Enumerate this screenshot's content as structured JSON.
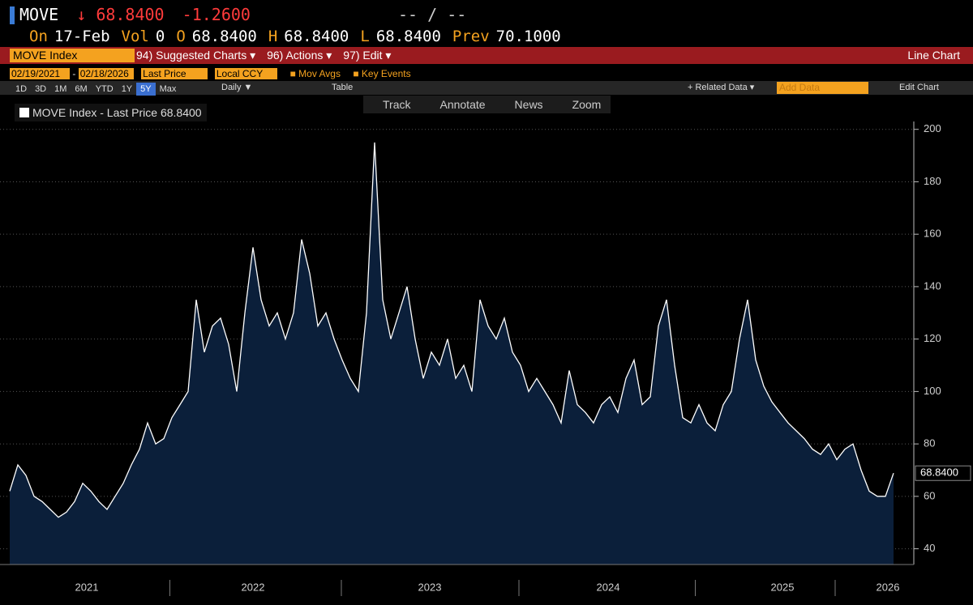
{
  "header": {
    "ticker": "MOVE",
    "arrow": "↓",
    "price": "68.8400",
    "change": "-1.2600",
    "ratio": "-- / --",
    "quote": [
      "On",
      "17-Feb",
      "Vol",
      "0",
      "O",
      "68.8400",
      "H",
      "68.8400",
      "L",
      "68.8400",
      "Prev",
      "70.1000"
    ]
  },
  "toolbar": {
    "security": "MOVE Index",
    "menus": [
      "94) Suggested Charts ▾",
      "96) Actions ▾",
      "97) Edit ▾"
    ],
    "chart_kind": "Line Chart",
    "start": "02/19/2021",
    "dash": "-",
    "end": "02/18/2026",
    "field": "Last Price",
    "currency": "Local CCY",
    "mov_avgs": "Mov Avgs",
    "key_events": "Key Events",
    "periods": [
      "1D",
      "3D",
      "1M",
      "6M",
      "YTD",
      "1Y",
      "5Y",
      "Max"
    ],
    "frequency": "Daily ▼",
    "table": "Table",
    "related": "+ Related Data ▾",
    "add_data": "Add Data",
    "edit_chart": "Edit Chart",
    "tools": [
      "Track",
      "Annotate",
      "News",
      "Zoom"
    ]
  },
  "chart_data": {
    "type": "area",
    "legend": "MOVE Index - Last Price 68.8400",
    "end_label": "68.8400",
    "xlim": [
      0,
      109
    ],
    "xticks": [
      {
        "value": 9.5,
        "label": "2021"
      },
      {
        "value": 30,
        "label": "2022"
      },
      {
        "value": 51.8,
        "label": "2023"
      },
      {
        "value": 73.8,
        "label": "2024"
      },
      {
        "value": 95.3,
        "label": "2025"
      },
      {
        "value": 108.3,
        "label": "2026"
      }
    ],
    "ylim": [
      34,
      203
    ],
    "yticks": [
      40,
      60,
      80,
      100,
      120,
      140,
      160,
      180,
      200
    ],
    "grid": true,
    "series": [
      {
        "name": "MOVE Index - Last Price",
        "color": "#ffffff",
        "fill": "#0b1f3a",
        "values": [
          62,
          72,
          68,
          60,
          58,
          55,
          52,
          54,
          58,
          65,
          62,
          58,
          55,
          60,
          65,
          72,
          78,
          88,
          80,
          82,
          90,
          95,
          100,
          135,
          115,
          125,
          128,
          118,
          100,
          130,
          155,
          135,
          125,
          130,
          120,
          130,
          158,
          145,
          125,
          130,
          120,
          112,
          105,
          100,
          130,
          195,
          135,
          120,
          130,
          140,
          120,
          105,
          115,
          110,
          120,
          105,
          110,
          100,
          135,
          125,
          120,
          128,
          115,
          110,
          100,
          105,
          100,
          95,
          88,
          108,
          95,
          92,
          88,
          95,
          98,
          92,
          105,
          112,
          95,
          98,
          125,
          135,
          110,
          90,
          88,
          95,
          88,
          85,
          95,
          100,
          120,
          135,
          112,
          102,
          96,
          92,
          88,
          85,
          82,
          78,
          76,
          80,
          74,
          78,
          80,
          70,
          62,
          60,
          60,
          68.84
        ]
      }
    ]
  }
}
